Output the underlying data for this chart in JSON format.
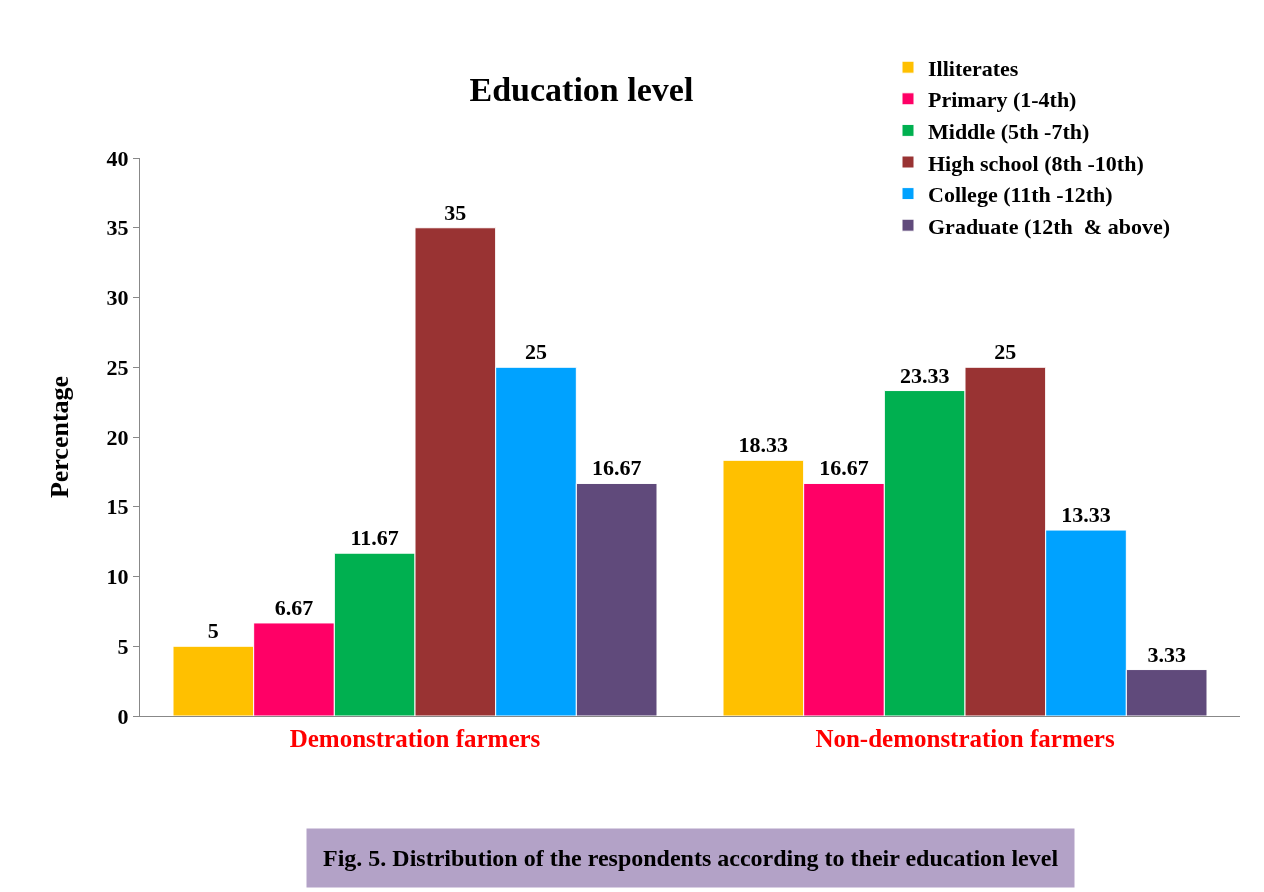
{
  "chart_data": {
    "type": "bar",
    "title": "Education level",
    "ylabel": "Percentage",
    "categories": [
      "Demonstration farmers",
      "Non-demonstration farmers"
    ],
    "series": [
      {
        "name": "Illiterates",
        "color": "#ffc000",
        "values": [
          5,
          18.33
        ]
      },
      {
        "name": "Primary (1-4th)",
        "color": "#ff0066",
        "values": [
          6.67,
          16.67
        ]
      },
      {
        "name": "Middle (5th -7th)",
        "color": "#00b050",
        "values": [
          11.67,
          23.33
        ]
      },
      {
        "name": "High school (8th -10th)",
        "color": "#993333",
        "values": [
          35,
          25
        ]
      },
      {
        "name": "College (11th -12th)",
        "color": "#00a2ff",
        "values": [
          25,
          13.33
        ]
      },
      {
        "name": "Graduate (12th  & above)",
        "color": "#604a7b",
        "values": [
          16.67,
          3.33
        ]
      }
    ],
    "ylim": [
      0,
      40
    ],
    "yticks": [
      0,
      5,
      10,
      15,
      20,
      25,
      30,
      35,
      40
    ],
    "grid": false,
    "legend": "top right",
    "data_labels": true,
    "annotations": [
      "Fig. 5. Distribution of the respondents according to their education level"
    ]
  }
}
